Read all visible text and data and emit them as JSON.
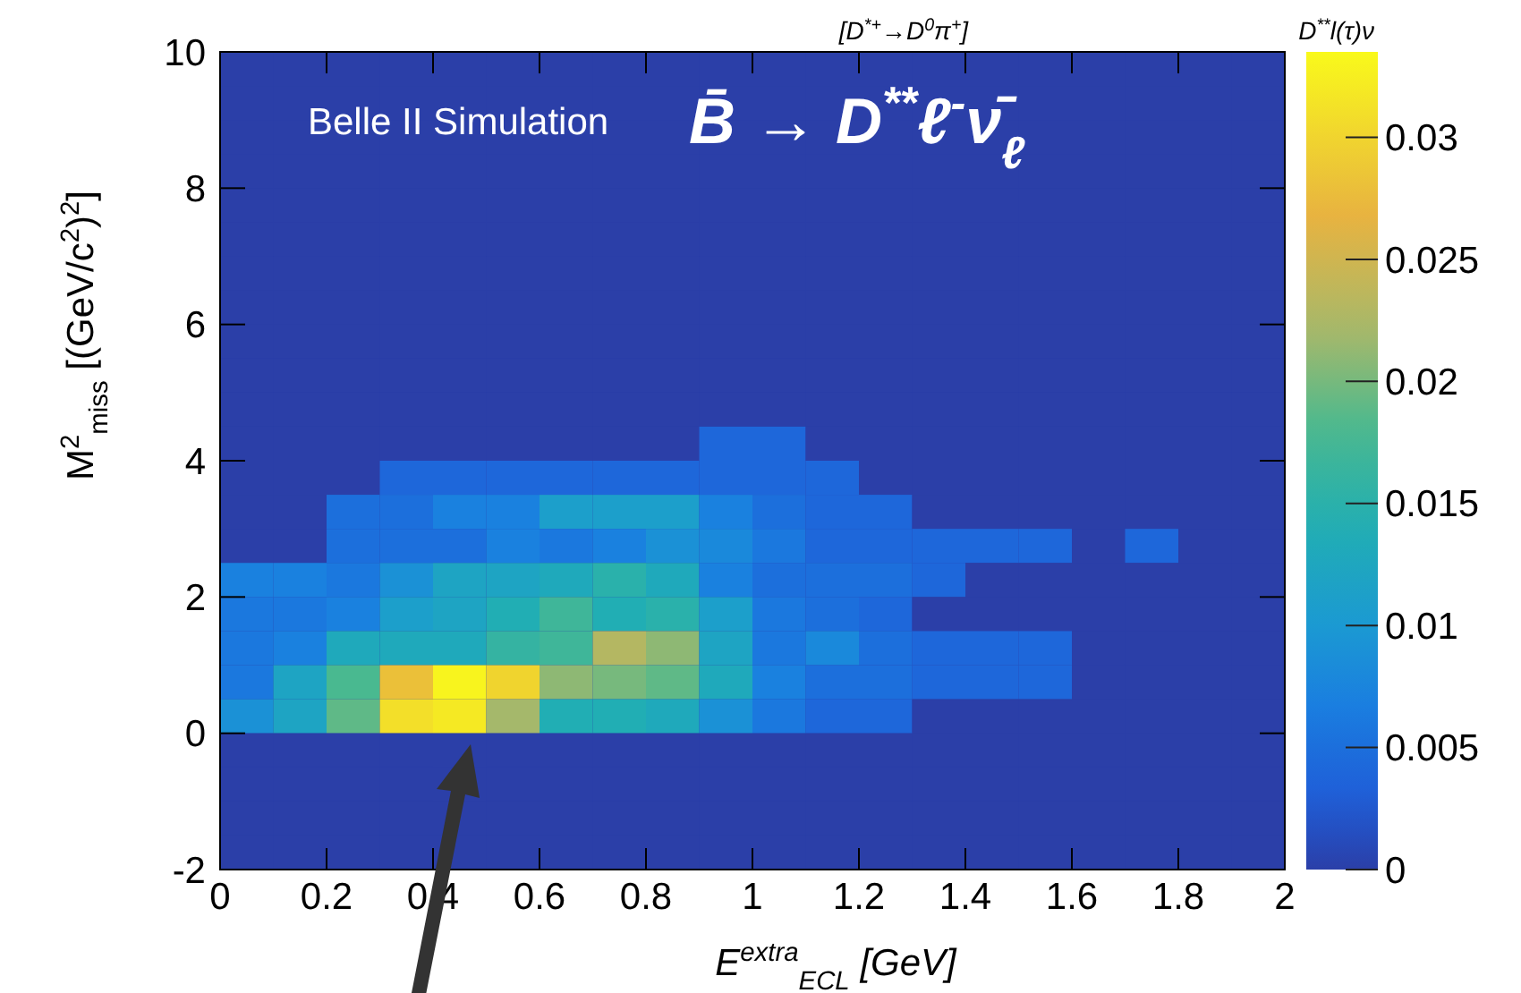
{
  "chart_data": {
    "type": "heatmap",
    "title": "[D$^{*+}$→D$^{0}$π$^{+}$]",
    "xlabel": "E$^{extra}$$_{ECL}$ [GeV]",
    "ylabel": "M$^{2}$$_{miss}$ [(GeV/c$^{2}$)$^{2}$]",
    "clabel": "D$^{**}$l(τ)ν",
    "annotations": [
      "Belle II Simulation",
      "B̄ → D$^{**}$ℓ$^{-}$ν̄$_{ℓ}$"
    ],
    "xlim": [
      0,
      2
    ],
    "xticks": [
      0,
      0.2,
      0.4,
      0.6,
      0.8,
      1,
      1.2,
      1.4,
      1.6,
      1.8,
      2
    ],
    "ylim": [
      -2,
      10
    ],
    "yticks": [
      -2,
      0,
      2,
      4,
      6,
      8,
      10
    ],
    "clim": [
      0,
      0.0335
    ],
    "cticks": [
      0,
      0.005,
      0.01,
      0.015,
      0.02,
      0.025,
      0.03
    ],
    "cells": [
      [
        0,
        0,
        0,
        0,
        0,
        0,
        0,
        0,
        0,
        0,
        0,
        0,
        0,
        0,
        0,
        0,
        0,
        0,
        0,
        0
      ],
      [
        0,
        0,
        0,
        0,
        0,
        0,
        0,
        0,
        0,
        0,
        0,
        0,
        0,
        0,
        0,
        0,
        0,
        0,
        0,
        0
      ],
      [
        0,
        0,
        0,
        0,
        0,
        0,
        0,
        0,
        0,
        0,
        0,
        0,
        0,
        0,
        0,
        0,
        0,
        0,
        0,
        0
      ],
      [
        0,
        0,
        0,
        0,
        0,
        0,
        0,
        0,
        0,
        0,
        0,
        0,
        0,
        0,
        0,
        0,
        0,
        0,
        0,
        0
      ],
      [
        0,
        0,
        0,
        0,
        0,
        0,
        0,
        0,
        0,
        0,
        0,
        0,
        0,
        0,
        0,
        0,
        0,
        0,
        0,
        0
      ],
      [
        0,
        0,
        0,
        0,
        0,
        0,
        0,
        0,
        0,
        0,
        0,
        0,
        0,
        0,
        0,
        0,
        0,
        0,
        0,
        0
      ],
      [
        0,
        0,
        0,
        0,
        0,
        0,
        0,
        0,
        0,
        0,
        0,
        0,
        0,
        0,
        0,
        0,
        0,
        0,
        0,
        0
      ],
      [
        0,
        0,
        0,
        0,
        0,
        0,
        0,
        0,
        0,
        0,
        0,
        0,
        0,
        0,
        0,
        0,
        0,
        0,
        0,
        0
      ],
      [
        0,
        0,
        0,
        0,
        0,
        0,
        0,
        0,
        0,
        0,
        0,
        0,
        0,
        0,
        0,
        0,
        0,
        0,
        0,
        0
      ],
      [
        0,
        0,
        0,
        0,
        0,
        0,
        0,
        0,
        0,
        0,
        0,
        0,
        0,
        0,
        0,
        0,
        0,
        0,
        0,
        0
      ],
      [
        0,
        0,
        0,
        0,
        0,
        0,
        0,
        0,
        0,
        0,
        0,
        0,
        0,
        0,
        0,
        0,
        0,
        0,
        0,
        0
      ],
      [
        0,
        0,
        0,
        0,
        0,
        0,
        0,
        0,
        0,
        0.004,
        0.004,
        0,
        0,
        0,
        0,
        0,
        0,
        0,
        0,
        0
      ],
      [
        0,
        0,
        0,
        0.004,
        0.004,
        0.004,
        0.004,
        0.004,
        0.004,
        0.004,
        0.004,
        0.004,
        0,
        0,
        0,
        0,
        0,
        0,
        0,
        0
      ],
      [
        0,
        0,
        0.005,
        0.005,
        0.007,
        0.007,
        0.011,
        0.011,
        0.011,
        0.007,
        0.005,
        0.004,
        0.004,
        0,
        0,
        0,
        0,
        0,
        0,
        0
      ],
      [
        0,
        0,
        0.005,
        0.005,
        0.005,
        0.007,
        0.006,
        0.007,
        0.009,
        0.008,
        0.006,
        0.004,
        0.004,
        0.004,
        0.004,
        0.004,
        0,
        0.004,
        0,
        0
      ],
      [
        0.007,
        0.007,
        0.006,
        0.009,
        0.012,
        0.012,
        0.013,
        0.015,
        0.013,
        0.007,
        0.005,
        0.005,
        0.005,
        0.004,
        0,
        0,
        0,
        0,
        0,
        0
      ],
      [
        0.006,
        0.006,
        0.007,
        0.011,
        0.012,
        0.014,
        0.017,
        0.014,
        0.015,
        0.011,
        0.006,
        0.005,
        0.004,
        0,
        0,
        0,
        0,
        0,
        0,
        0
      ],
      [
        0.006,
        0.007,
        0.013,
        0.013,
        0.013,
        0.016,
        0.017,
        0.023,
        0.021,
        0.012,
        0.006,
        0.008,
        0.005,
        0.004,
        0.004,
        0.004,
        0,
        0,
        0,
        0
      ],
      [
        0.006,
        0.012,
        0.018,
        0.028,
        0.033,
        0.03,
        0.021,
        0.02,
        0.019,
        0.013,
        0.007,
        0.005,
        0.005,
        0.004,
        0.004,
        0.004,
        0,
        0,
        0,
        0
      ],
      [
        0.009,
        0.012,
        0.019,
        0.031,
        0.032,
        0.022,
        0.014,
        0.014,
        0.013,
        0.009,
        0.006,
        0.004,
        0.004,
        0,
        0,
        0,
        0,
        0,
        0,
        0
      ],
      [
        0,
        0,
        0,
        0,
        0,
        0,
        0,
        0,
        0,
        0,
        0,
        0,
        0,
        0,
        0,
        0,
        0,
        0,
        0,
        0
      ],
      [
        0,
        0,
        0,
        0,
        null,
        0,
        0,
        0,
        0,
        0,
        0,
        0,
        0,
        0,
        0,
        0,
        0,
        0,
        0,
        0
      ],
      [
        0,
        0,
        0,
        0,
        0,
        0,
        0,
        0,
        0,
        0,
        0,
        0,
        0,
        0,
        0,
        0,
        0,
        0,
        0,
        0
      ],
      [
        0,
        0,
        0,
        0,
        0,
        0,
        0,
        0,
        0,
        0,
        0,
        0,
        0,
        0,
        0,
        0,
        0,
        0,
        0,
        0
      ]
    ]
  }
}
